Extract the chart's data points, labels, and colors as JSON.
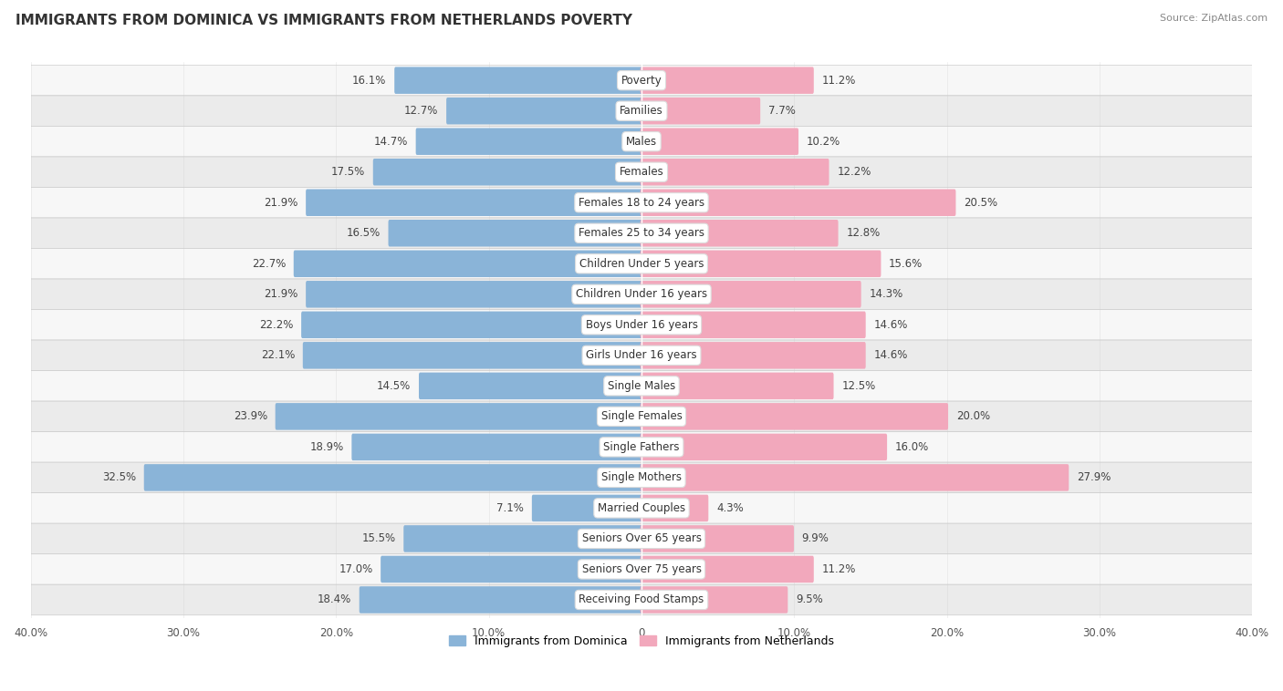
{
  "title": "IMMIGRANTS FROM DOMINICA VS IMMIGRANTS FROM NETHERLANDS POVERTY",
  "source": "Source: ZipAtlas.com",
  "categories": [
    "Poverty",
    "Families",
    "Males",
    "Females",
    "Females 18 to 24 years",
    "Females 25 to 34 years",
    "Children Under 5 years",
    "Children Under 16 years",
    "Boys Under 16 years",
    "Girls Under 16 years",
    "Single Males",
    "Single Females",
    "Single Fathers",
    "Single Mothers",
    "Married Couples",
    "Seniors Over 65 years",
    "Seniors Over 75 years",
    "Receiving Food Stamps"
  ],
  "dominica_values": [
    16.1,
    12.7,
    14.7,
    17.5,
    21.9,
    16.5,
    22.7,
    21.9,
    22.2,
    22.1,
    14.5,
    23.9,
    18.9,
    32.5,
    7.1,
    15.5,
    17.0,
    18.4
  ],
  "netherlands_values": [
    11.2,
    7.7,
    10.2,
    12.2,
    20.5,
    12.8,
    15.6,
    14.3,
    14.6,
    14.6,
    12.5,
    20.0,
    16.0,
    27.9,
    4.3,
    9.9,
    11.2,
    9.5
  ],
  "dominica_color": "#8ab4d8",
  "netherlands_color": "#f2a8bc",
  "label_dominica": "Immigrants from Dominica",
  "label_netherlands": "Immigrants from Netherlands",
  "axis_max": 40.0,
  "background_color": "#ffffff",
  "row_bg_light": "#f7f7f7",
  "row_bg_dark": "#ebebeb",
  "separator_color": "#cccccc",
  "label_color": "#444444"
}
